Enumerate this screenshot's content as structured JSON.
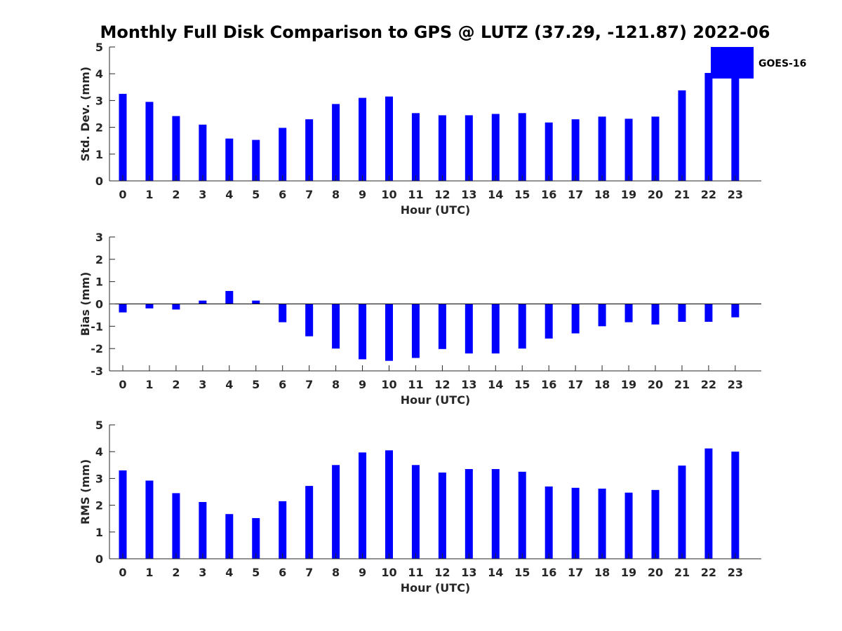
{
  "chart_data": {
    "title": "Monthly Full Disk Comparison to GPS @ LUTZ (37.29, -121.87) 2022-06",
    "legend": {
      "label": "GOES-16",
      "color": "#0000ff",
      "placement": "top-right"
    },
    "panels": [
      {
        "type": "bar",
        "key": "std",
        "ylabel": "Std. Dev. (mm)",
        "xlabel": "Hour (UTC)",
        "ylim": [
          0,
          5
        ],
        "yticks": [
          0,
          1,
          2,
          3,
          4,
          5
        ],
        "categories": [
          0,
          1,
          2,
          3,
          4,
          5,
          6,
          7,
          8,
          9,
          10,
          11,
          12,
          13,
          14,
          15,
          16,
          17,
          18,
          19,
          20,
          21,
          22,
          23
        ],
        "values": [
          3.25,
          2.95,
          2.42,
          2.1,
          1.58,
          1.53,
          1.98,
          2.3,
          2.87,
          3.1,
          3.15,
          2.53,
          2.45,
          2.45,
          2.5,
          2.53,
          2.18,
          2.3,
          2.4,
          2.32,
          2.4,
          3.38,
          4.03,
          3.95
        ]
      },
      {
        "type": "bar",
        "key": "bias",
        "ylabel": "Bias (mm)",
        "xlabel": "Hour (UTC)",
        "ylim": [
          -3,
          3
        ],
        "yticks": [
          -3,
          -2,
          -1,
          0,
          1,
          2,
          3
        ],
        "categories": [
          0,
          1,
          2,
          3,
          4,
          5,
          6,
          7,
          8,
          9,
          10,
          11,
          12,
          13,
          14,
          15,
          16,
          17,
          18,
          19,
          20,
          21,
          22,
          23
        ],
        "values": [
          -0.38,
          -0.2,
          -0.25,
          0.15,
          0.58,
          0.15,
          -0.82,
          -1.45,
          -2.0,
          -2.48,
          -2.55,
          -2.42,
          -2.02,
          -2.22,
          -2.22,
          -2.0,
          -1.55,
          -1.32,
          -1.0,
          -0.82,
          -0.92,
          -0.8,
          -0.8,
          -0.6
        ]
      },
      {
        "type": "bar",
        "key": "rms",
        "ylabel": "RMS (mm)",
        "xlabel": "Hour (UTC)",
        "ylim": [
          0,
          5
        ],
        "yticks": [
          0,
          1,
          2,
          3,
          4,
          5
        ],
        "categories": [
          0,
          1,
          2,
          3,
          4,
          5,
          6,
          7,
          8,
          9,
          10,
          11,
          12,
          13,
          14,
          15,
          16,
          17,
          18,
          19,
          20,
          21,
          22,
          23
        ],
        "values": [
          3.3,
          2.92,
          2.45,
          2.12,
          1.67,
          1.52,
          2.15,
          2.72,
          3.5,
          3.97,
          4.05,
          3.5,
          3.22,
          3.35,
          3.35,
          3.25,
          2.7,
          2.65,
          2.62,
          2.47,
          2.57,
          3.48,
          4.12,
          4.0
        ]
      }
    ]
  }
}
